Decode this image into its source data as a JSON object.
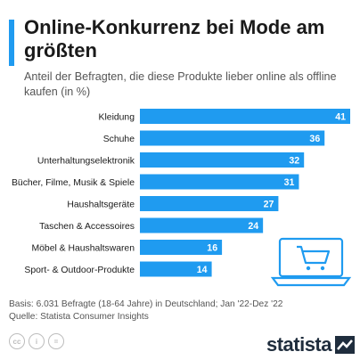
{
  "header": {
    "title": "Online-Konkurrenz bei Mode am größten",
    "subtitle": "Anteil der Befragten, die diese Produkte lieber online als offline kaufen (in %)"
  },
  "colors": {
    "accent": "#1f9bf0",
    "bar": "#1f9bf0",
    "illustration_stroke": "#1f9bf0"
  },
  "chart_data": {
    "type": "bar",
    "orientation": "horizontal",
    "categories": [
      "Kleidung",
      "Schuhe",
      "Unterhaltungselektronik",
      "Bücher, Filme, Musik & Spiele",
      "Haushaltsgeräte",
      "Taschen & Accessoires",
      "Möbel & Haushaltswaren",
      "Sport- & Outdoor-Produkte"
    ],
    "values": [
      41,
      36,
      32,
      31,
      27,
      24,
      16,
      14
    ],
    "data_labels": [
      "41",
      "36",
      "32",
      "31",
      "27",
      "24",
      "16",
      "14"
    ],
    "xlim": [
      0,
      41
    ],
    "grid": false,
    "legend": "none"
  },
  "footer": {
    "basis": "Basis: 6.031 Befragte (18-64 Jahre) in Deutschland; Jan '22-Dez '22",
    "source": "Quelle: Statista Consumer Insights"
  },
  "license_icons": [
    "cc",
    "i",
    "="
  ],
  "logo": {
    "text": "statista",
    "icon": "statista-logo-icon"
  },
  "illustration": {
    "icon": "laptop-shopping-cart-icon"
  }
}
